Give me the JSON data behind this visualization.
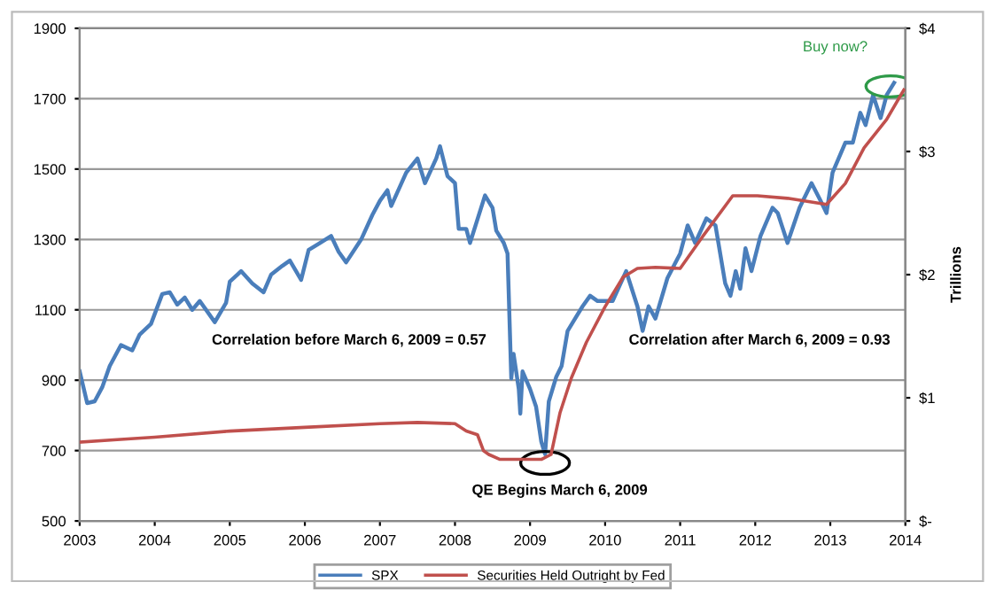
{
  "chart_data": {
    "type": "line",
    "ylabel": null,
    "y2label": "Trillions",
    "annotations": [
      "Correlation before March 6, 2009 = 0.57",
      "QE Begins March 6, 2009",
      "Correlation after March 6, 2009 = 0.93",
      "Buy now?"
    ],
    "xlim": [
      2003,
      2014
    ],
    "xticks": [
      2003,
      2004,
      2005,
      2006,
      2007,
      2008,
      2009,
      2010,
      2011,
      2012,
      2013,
      2014
    ],
    "ylim": [
      500,
      1900
    ],
    "yticks": [
      500,
      700,
      900,
      1100,
      1300,
      1500,
      1700,
      1900
    ],
    "y2lim": [
      0,
      4
    ],
    "y2ticks": [
      {
        "value": 0,
        "label": "$-"
      },
      {
        "value": 1,
        "label": "$1"
      },
      {
        "value": 2,
        "label": "$2"
      },
      {
        "value": 3,
        "label": "$3"
      },
      {
        "value": 4,
        "label": "$4"
      }
    ],
    "grid": "y",
    "legend": "bottom",
    "marker": "none",
    "line_style": "solid",
    "series": [
      {
        "name": "SPX",
        "color": "#4a7ebb",
        "x": [
          2003.0,
          2003.1,
          2003.2,
          2003.3,
          2003.4,
          2003.55,
          2003.7,
          2003.8,
          2003.95,
          2004.1,
          2004.2,
          2004.3,
          2004.4,
          2004.5,
          2004.6,
          2004.8,
          2004.95,
          2005.0,
          2005.1,
          2005.15,
          2005.3,
          2005.45,
          2005.55,
          2005.7,
          2005.8,
          2005.95,
          2006.05,
          2006.2,
          2006.35,
          2006.45,
          2006.55,
          2006.75,
          2006.9,
          2007.0,
          2007.1,
          2007.15,
          2007.35,
          2007.5,
          2007.6,
          2007.75,
          2007.8,
          2007.9,
          2008.0,
          2008.05,
          2008.15,
          2008.2,
          2008.4,
          2008.5,
          2008.55,
          2008.65,
          2008.7,
          2008.75,
          2008.78,
          2008.85,
          2008.87,
          2008.9,
          2009.0,
          2009.08,
          2009.15,
          2009.2,
          2009.25,
          2009.35,
          2009.42,
          2009.5,
          2009.6,
          2009.7,
          2009.8,
          2009.9,
          2010.1,
          2010.28,
          2010.43,
          2010.5,
          2010.58,
          2010.67,
          2010.83,
          2011.0,
          2011.1,
          2011.2,
          2011.35,
          2011.47,
          2011.6,
          2011.67,
          2011.74,
          2011.8,
          2011.87,
          2011.95,
          2012.07,
          2012.23,
          2012.3,
          2012.43,
          2012.59,
          2012.75,
          2012.87,
          2012.95,
          2013.03,
          2013.2,
          2013.3,
          2013.4,
          2013.47,
          2013.57,
          2013.67,
          2013.75,
          2013.85
        ],
        "values": [
          925,
          835,
          840,
          880,
          940,
          1000,
          985,
          1030,
          1060,
          1145,
          1150,
          1115,
          1135,
          1100,
          1125,
          1065,
          1120,
          1180,
          1200,
          1210,
          1175,
          1150,
          1200,
          1225,
          1240,
          1185,
          1270,
          1290,
          1310,
          1265,
          1235,
          1300,
          1370,
          1410,
          1440,
          1395,
          1490,
          1530,
          1460,
          1530,
          1565,
          1480,
          1460,
          1330,
          1330,
          1290,
          1425,
          1390,
          1325,
          1290,
          1260,
          905,
          975,
          875,
          805,
          925,
          875,
          825,
          725,
          690,
          840,
          910,
          940,
          1040,
          1075,
          1110,
          1140,
          1125,
          1125,
          1210,
          1110,
          1040,
          1110,
          1075,
          1190,
          1260,
          1340,
          1290,
          1360,
          1340,
          1175,
          1140,
          1210,
          1160,
          1275,
          1210,
          1310,
          1390,
          1375,
          1290,
          1390,
          1460,
          1410,
          1375,
          1490,
          1575,
          1575,
          1660,
          1625,
          1710,
          1645,
          1710,
          1745
        ]
      },
      {
        "name": "Securities Held Outright by Fed",
        "color": "#c0504d",
        "axis": "y2",
        "x": [
          2003.0,
          2003.5,
          2004.0,
          2005.0,
          2006.0,
          2007.0,
          2007.5,
          2008.0,
          2008.15,
          2008.3,
          2008.38,
          2008.45,
          2008.6,
          2009.15,
          2009.28,
          2009.4,
          2009.55,
          2009.75,
          2010.0,
          2010.24,
          2010.43,
          2010.67,
          2011.0,
          2011.3,
          2011.7,
          2012.03,
          2012.43,
          2012.95,
          2013.2,
          2013.45,
          2013.75,
          2013.98
        ],
        "values": [
          0.64,
          0.66,
          0.68,
          0.73,
          0.76,
          0.79,
          0.8,
          0.79,
          0.73,
          0.7,
          0.57,
          0.54,
          0.5,
          0.5,
          0.54,
          0.88,
          1.16,
          1.45,
          1.74,
          1.98,
          2.05,
          2.06,
          2.05,
          2.31,
          2.64,
          2.64,
          2.62,
          2.57,
          2.74,
          3.03,
          3.26,
          3.5
        ]
      }
    ]
  }
}
